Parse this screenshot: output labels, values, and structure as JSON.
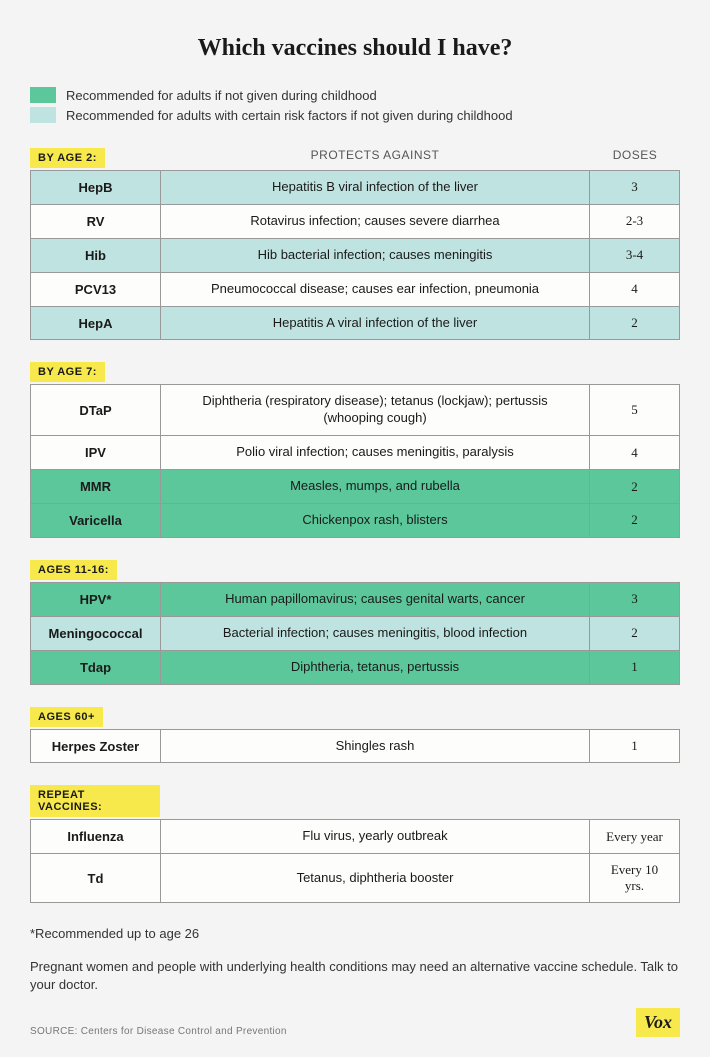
{
  "title": "Which vaccines should I have?",
  "legend": [
    {
      "swatch_class": "swatch-green",
      "text": "Recommended for adults if not given during childhood"
    },
    {
      "swatch_class": "swatch-teal",
      "text": "Recommended for adults with certain risk factors if not given during childhood"
    }
  ],
  "columns": {
    "protect": "PROTECTS AGAINST",
    "doses": "DOSES"
  },
  "sections": [
    {
      "tag": "BY AGE 2:",
      "show_columns": true,
      "rows": [
        {
          "name": "HepB",
          "protect": "Hepatitis B viral infection of the liver",
          "doses": "3",
          "row_class": "teal"
        },
        {
          "name": "RV",
          "protect": "Rotavirus infection; causes severe diarrhea",
          "doses": "2-3",
          "row_class": "white"
        },
        {
          "name": "Hib",
          "protect": "Hib bacterial infection; causes meningitis",
          "doses": "3-4",
          "row_class": "teal"
        },
        {
          "name": "PCV13",
          "protect": "Pneumococcal disease; causes ear infection, pneumonia",
          "doses": "4",
          "row_class": "white"
        },
        {
          "name": "HepA",
          "protect": "Hepatitis A viral infection of the liver",
          "doses": "2",
          "row_class": "teal"
        }
      ]
    },
    {
      "tag": "BY AGE 7:",
      "show_columns": false,
      "rows": [
        {
          "name": "DTaP",
          "protect": "Diphtheria (respiratory disease); tetanus (lockjaw); pertussis (whooping cough)",
          "doses": "5",
          "row_class": "white"
        },
        {
          "name": "IPV",
          "protect": "Polio viral infection; causes meningitis, paralysis",
          "doses": "4",
          "row_class": "white"
        },
        {
          "name": "MMR",
          "protect": "Measles, mumps, and rubella",
          "doses": "2",
          "row_class": "green"
        },
        {
          "name": "Varicella",
          "protect": "Chickenpox rash, blisters",
          "doses": "2",
          "row_class": "green"
        }
      ]
    },
    {
      "tag": "AGES 11-16:",
      "show_columns": false,
      "rows": [
        {
          "name": "HPV*",
          "protect": "Human papillomavirus; causes genital warts, cancer",
          "doses": "3",
          "row_class": "green"
        },
        {
          "name": "Meningococcal",
          "protect": "Bacterial infection; causes meningitis, blood infection",
          "doses": "2",
          "row_class": "teal"
        },
        {
          "name": "Tdap",
          "protect": "Diphtheria, tetanus, pertussis",
          "doses": "1",
          "row_class": "green"
        }
      ]
    },
    {
      "tag": "AGES 60+",
      "show_columns": false,
      "rows": [
        {
          "name": "Herpes Zoster",
          "protect": "Shingles rash",
          "doses": "1",
          "row_class": "white"
        }
      ]
    },
    {
      "tag": "REPEAT VACCINES:",
      "show_columns": false,
      "rows": [
        {
          "name": "Influenza",
          "protect": "Flu virus, yearly outbreak",
          "doses": "Every year",
          "row_class": "white"
        },
        {
          "name": "Td",
          "protect": "Tetanus, diphtheria booster",
          "doses": "Every 10 yrs.",
          "row_class": "white"
        }
      ]
    }
  ],
  "footnotes": [
    "*Recommended up to age 26",
    "Pregnant women and people with underlying health conditions may need an alternative vaccine schedule. Talk to your doctor."
  ],
  "source": "SOURCE: Centers for Disease Control and Prevention",
  "logo": "Vox",
  "colors": {
    "green": "#5bc79b",
    "teal": "#bfe3e0",
    "yellow": "#f7e94b",
    "background": "#f3f4f3",
    "border": "#999999"
  }
}
